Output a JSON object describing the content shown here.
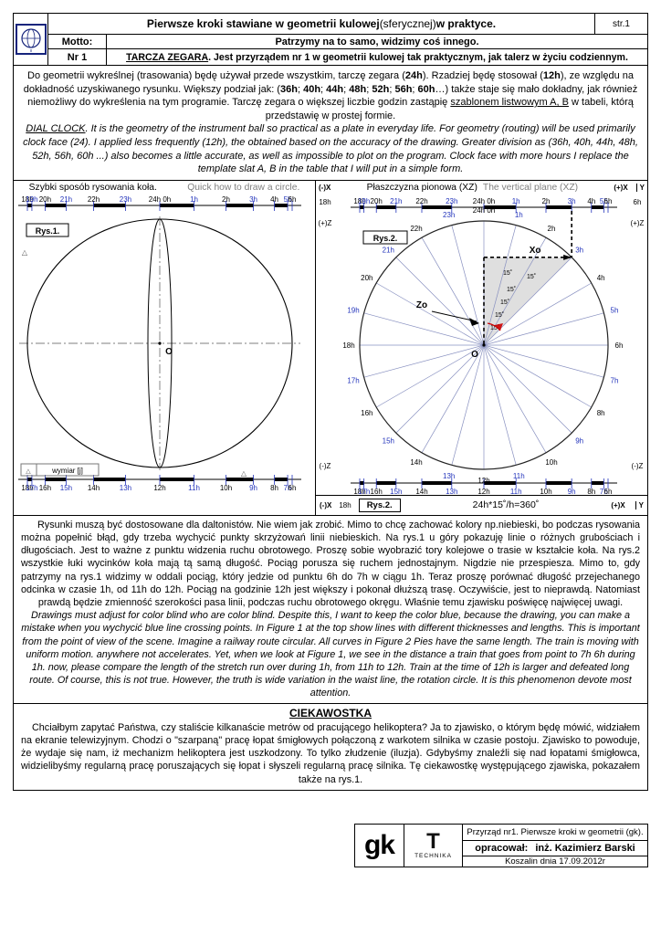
{
  "header": {
    "title": [
      {
        "t": "Pierwsze kroki stawiane w geometrii kulowej",
        "b": true
      },
      {
        "t": " (sferycznej) "
      },
      {
        "t": "w praktyce.",
        "b": true
      }
    ],
    "page_no": "str.1",
    "motto_label": "Motto:",
    "motto": "Patrzymy na to samo, widzimy coś innego.",
    "nr_label": "Nr 1",
    "nr_text": [
      {
        "t": "TARCZA ZEGARA",
        "b": true,
        "u": true
      },
      {
        "t": ". Jest przyrządem nr 1 w geometrii kulowej tak praktycznym, jak talerz w życiu codziennym.",
        "b": true
      }
    ]
  },
  "intro": [
    {
      "t": "Do geometrii wykreślnej (trasowania) będę używał przede wszystkim, tarczę zegara ("
    },
    {
      "t": "24h",
      "b": true
    },
    {
      "t": "). Rzadziej będę stosował ("
    },
    {
      "t": "12h",
      "b": true
    },
    {
      "t": "), ze względu na dokładność uzyskiwanego rysunku. Większy podział jak: ("
    },
    {
      "t": "36h",
      "b": true
    },
    {
      "t": "; "
    },
    {
      "t": "40h",
      "b": true
    },
    {
      "t": "; "
    },
    {
      "t": "44h",
      "b": true
    },
    {
      "t": "; "
    },
    {
      "t": "48h",
      "b": true
    },
    {
      "t": "; "
    },
    {
      "t": "52h",
      "b": true
    },
    {
      "t": "; "
    },
    {
      "t": "56h",
      "b": true
    },
    {
      "t": "; "
    },
    {
      "t": "60h",
      "b": true
    },
    {
      "t": "…) także staje się mało dokładny, jak również niemożliwy do wykreślenia na tym programie. Tarczę zegara o większej liczbie godzin zastąpię "
    },
    {
      "t": "szablonem listwowym A, B",
      "u": true
    },
    {
      "t": " w tabeli, którą przedstawię w prostej formie."
    },
    {
      "br": true
    },
    {
      "t": "DIAL CLOCK",
      "i": true,
      "u": true
    },
    {
      "t": ". It is the geometry of the instrument ball so practical as a plate in everyday life. For geometry (routing) will be used primarily clock face (24). I applied less frequently (12h), the obtained based on the accuracy of the drawing. Greater division as (36h, 40h, 44h, 48h, 52h, 56h, 60h ...) also becomes a little accurate, as well as impossible to plot on the program. Clock face with more hours I replace the template slat A, B in the table that I will put in a simple form.",
      "i": true
    }
  ],
  "panels": {
    "left_title_pl": "Szybki sposób rysowania koła.",
    "left_title_en": "Quick how to draw a circle.",
    "right_title_pl": "Płaszczyzna pionowa (XZ)",
    "right_title_en": "The vertical plane (XZ)",
    "axis": {
      "neg_x": "(-)X",
      "pos_x": "(+)X",
      "y": "Y",
      "pos_z": "(+)Z",
      "neg_z": "(-)Z"
    },
    "rys1_label": "Rys.1.",
    "rys2_label": "Rys.2.",
    "caption_formula": "24h*15˚/h=360˚",
    "wymiar": "wymiar [j]",
    "origin": "O",
    "xo": "Xo",
    "zo": "Zo",
    "deg15": "15˚",
    "edge_left": "18h",
    "edge_right": "6h",
    "top_hours": [
      "18h",
      "19h",
      "20h",
      "21h",
      "22h",
      "23h",
      "24h 0h",
      "1h",
      "2h",
      "3h",
      "4h",
      "5h",
      "6h"
    ],
    "bottom_hours": [
      "18h",
      "17h",
      "16h",
      "15h",
      "14h",
      "13h",
      "12h",
      "11h",
      "10h",
      "9h",
      "8h",
      "7h",
      "6h"
    ],
    "ring_hours": [
      "24h 0h",
      "1h",
      "2h",
      "3h",
      "4h",
      "5h",
      "6h",
      "7h",
      "8h",
      "9h",
      "10h",
      "11h",
      "12h",
      "13h",
      "14h",
      "15h",
      "16h",
      "17h",
      "18h",
      "19h",
      "20h",
      "21h",
      "22h",
      "23h"
    ],
    "colors": {
      "blue": "#2233bb",
      "spoke": "#8890c0",
      "red": "#cc0000",
      "gray_text": "#808080"
    }
  },
  "body": {
    "p3": [
      {
        "t": "Rysunki muszą być dostosowane dla daltonistów. Nie wiem jak zrobić. Mimo to chcę zachować kolory np.niebieski, bo podczas rysowania można popełnić błąd, gdy trzeba wychycić punkty skrzyżowań linii niebieskich. Na rys.1 u góry pokazuję linie o różnych grubościach i długościach. Jest to ważne z punktu widzenia ruchu obrotowego. Proszę sobie wyobrazić tory kolejowe o trasie w kształcie koła. Na rys.2 wszystkie łuki wycinków koła mają tą samą długość. Pociąg porusza się ruchem jednostajnym. Nigdzie nie przespiesza. Mimo to, gdy patrzymy na rys.1 widzimy w oddali pociąg, który jedzie od punktu 6h do 7h w ciągu 1h. Teraz proszę porównać długość przejechanego odcinka w czasie 1h, od 11h do 12h. Pociąg na godzinie 12h jest większy i pokonał dłuższą trasę. Oczywiście, jest to nieprawdą. Natomiast prawdą będzie zmienność szerokości pasa linii, podczas ruchu obrotowego okręgu. Właśnie temu zjawisku poświęcę najwięcej uwagi."
      }
    ],
    "p4": [
      {
        "t": "Drawings must adjust for color blind who are color blind. Despite this, I want to keep the color blue, because the drawing, you can make a mistake when you wychycić blue line crossing points. In Figure 1 at the top show lines with different thicknesses and lengths. This is important from the point of view of the scene. Imagine a railway route circular. All curves in Figure 2 Pies have the same length. The train is moving with uniform motion. anywhere not accelerates. Yet, when we look at Figure 1, we see in the distance a train that goes from point to 7h 6h during 1h. now, please compare the length of the stretch run over during 1h, from 11h to 12h. Train at the time of 12h is larger and defeated long route. Of course, this is not true. However, the truth is wide variation in the waist line, the rotation circle. It is this phenomenon devote most attention.",
        "i": true
      }
    ]
  },
  "tail": {
    "heading": "CIEKAWOSTKA",
    "p5": [
      {
        "t": "Chciałbym zapytać Państwa, czy staliście kilkanaście metrów od pracującego helikoptera? Ja to zjawisko, o którym będę mówić, widziałem na ekranie telewizyjnym. Chodzi o \"szarpaną\" pracę łopat śmigłowych połączoną z warkotem silnika w czasie postoju. Zjawisko to powoduje, że wydaje się nam, iż mechanizm helikoptera jest uszkodzony. To tylko złudzenie (iluzja). Gdybyśmy znaleźli się nad łopatami śmigłowca, widzielibyśmy regularną pracę poruszających się łopat i słyszeli regularną pracę silnika. Tę ciekawostkę występującego zjawiska, pokazałem także na rys.1."
      }
    ]
  },
  "footer": {
    "gk": "gk",
    "t": "T",
    "technika": "TECHNIKA",
    "line1": "Przyrząd nr1. Pierwsze kroki w geometrii (gk).",
    "line2_label": "opracował:",
    "line2_name": "inż. Kazimierz Barski",
    "line3": "Koszalin dnia 17.09.2012r"
  }
}
